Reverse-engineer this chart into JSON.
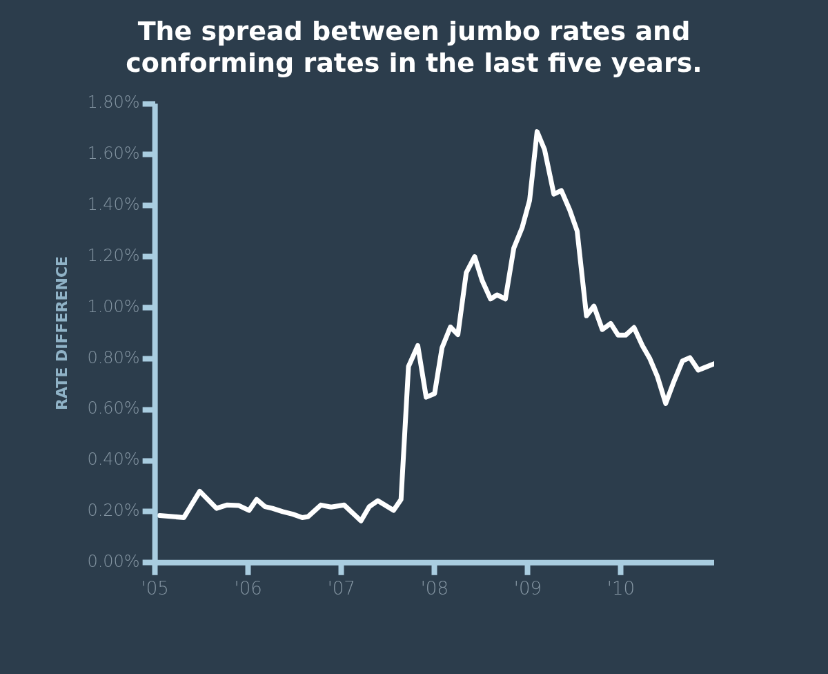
{
  "chart_data": {
    "type": "line",
    "title": "The spread between jumbo rates and conforming rates in the last five years.",
    "ylabel": "RATE DIFFERENCE",
    "x": [
      2005.05,
      2005.31,
      2005.48,
      2005.66,
      2005.77,
      2005.9,
      2006.01,
      2006.09,
      2006.18,
      2006.26,
      2006.37,
      2006.48,
      2006.58,
      2006.64,
      2006.78,
      2006.89,
      2007.03,
      2007.21,
      2007.3,
      2007.39,
      2007.56,
      2007.64,
      2007.72,
      2007.82,
      2007.91,
      2008.0,
      2008.08,
      2008.17,
      2008.25,
      2008.34,
      2008.43,
      2008.51,
      2008.6,
      2008.67,
      2008.76,
      2008.85,
      2008.94,
      2009.02,
      2009.1,
      2009.18,
      2009.28,
      2009.36,
      2009.45,
      2009.53,
      2009.63,
      2009.71,
      2009.8,
      2009.89,
      2009.97,
      2010.05,
      2010.14,
      2010.23,
      2010.31,
      2010.39,
      2010.48,
      2010.57,
      2010.66,
      2010.74,
      2010.83,
      2011.0
    ],
    "series": [
      {
        "color": "#ffffff",
        "values": [
          0.185,
          0.177,
          0.28,
          0.213,
          0.226,
          0.224,
          0.205,
          0.248,
          0.22,
          0.213,
          0.2,
          0.19,
          0.177,
          0.18,
          0.226,
          0.218,
          0.226,
          0.164,
          0.22,
          0.243,
          0.205,
          0.248,
          0.769,
          0.851,
          0.649,
          0.663,
          0.843,
          0.924,
          0.894,
          1.137,
          1.2,
          1.107,
          1.034,
          1.05,
          1.034,
          1.233,
          1.314,
          1.421,
          1.69,
          1.62,
          1.445,
          1.459,
          1.383,
          1.3,
          0.968,
          1.006,
          0.914,
          0.938,
          0.892,
          0.892,
          0.922,
          0.851,
          0.8,
          0.731,
          0.624,
          0.712,
          0.791,
          0.804,
          0.755,
          0.78
        ]
      }
    ],
    "xlim": [
      2005,
      2011
    ],
    "xticks": [
      {
        "value": 2005,
        "label": "'05"
      },
      {
        "value": 2006,
        "label": "'06"
      },
      {
        "value": 2007,
        "label": "'07"
      },
      {
        "value": 2008,
        "label": "'08"
      },
      {
        "value": 2009,
        "label": "'09"
      },
      {
        "value": 2010,
        "label": "'10"
      }
    ],
    "ylim": [
      0,
      1.8
    ],
    "yticks": [
      {
        "value": 0,
        "label": "0.00%"
      },
      {
        "value": 0.2,
        "label": "0.20%"
      },
      {
        "value": 0.4,
        "label": "0.40%"
      },
      {
        "value": 0.6,
        "label": "0.60%"
      },
      {
        "value": 0.8,
        "label": "0.80%"
      },
      {
        "value": 1,
        "label": "1.00%"
      },
      {
        "value": 1.2,
        "label": "1.20%"
      },
      {
        "value": 1.4,
        "label": "1.40%"
      },
      {
        "value": 1.6,
        "label": "1.60%"
      },
      {
        "value": 1.8,
        "label": "1.80%"
      }
    ],
    "grid": false,
    "legend": false,
    "marker": "none",
    "line_style": "solid"
  }
}
